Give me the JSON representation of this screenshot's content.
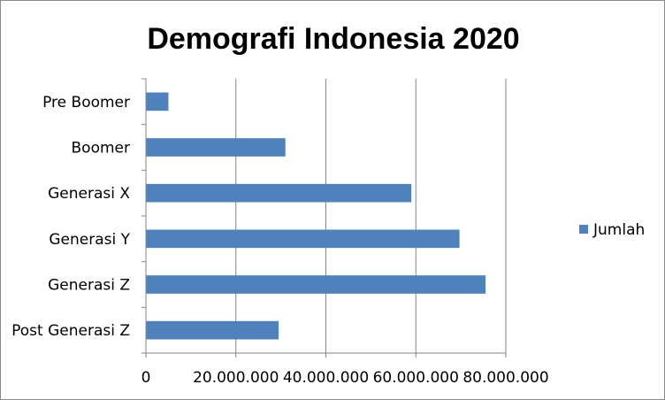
{
  "chart_data": {
    "type": "bar",
    "orientation": "horizontal",
    "title": "Demografi Indonesia 2020",
    "xlabel": "",
    "ylabel": "",
    "categories": [
      "Pre Boomer",
      "Boomer",
      "Generasi X",
      "Generasi Y",
      "Generasi Z",
      "Post Generasi Z"
    ],
    "series": [
      {
        "name": "Jumlah",
        "color": "#4f81bd",
        "values": [
          5000000,
          31000000,
          59000000,
          69700000,
          75500000,
          29500000
        ]
      }
    ],
    "xlim": [
      0,
      80000000
    ],
    "x_ticks": [
      0,
      20000000,
      40000000,
      60000000,
      80000000
    ],
    "x_tick_labels": [
      "0",
      "20.000.000",
      "40.000.000",
      "60.000.000",
      "80.000.000"
    ],
    "grid": "vertical",
    "legend_position": "right"
  }
}
